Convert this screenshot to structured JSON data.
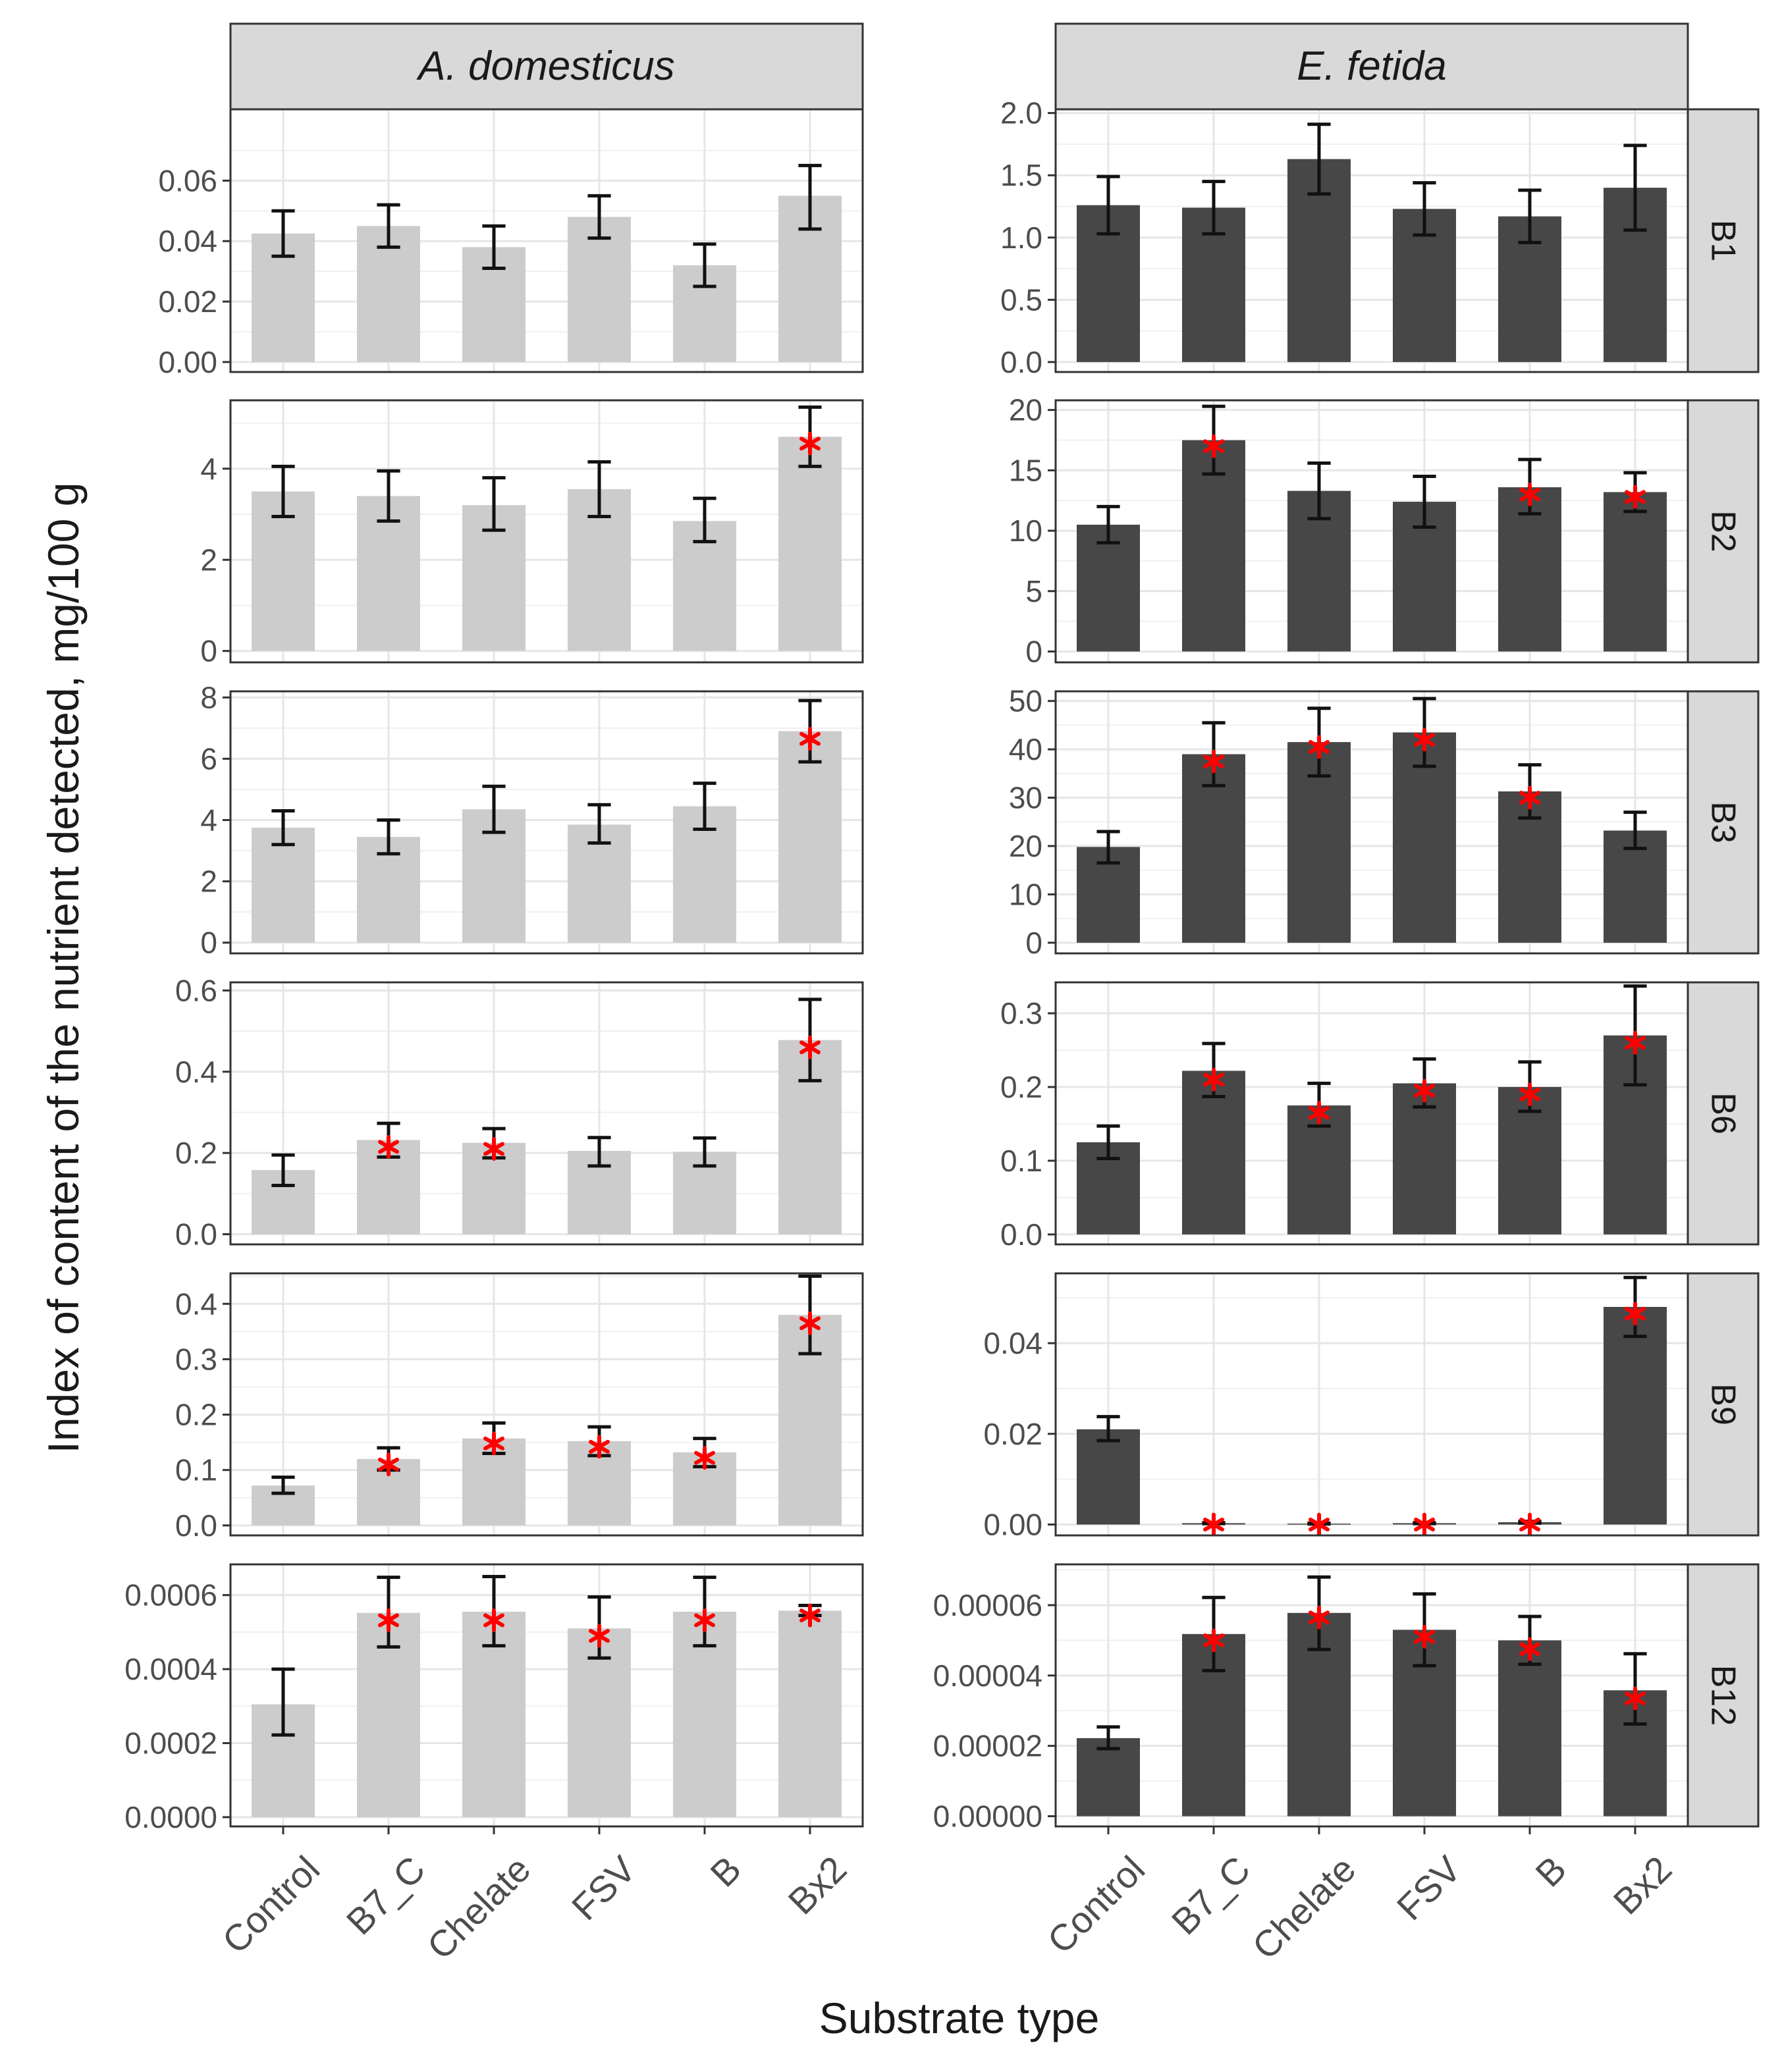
{
  "chart_data": {
    "type": "bar",
    "layout": "facet grid: 6 rows (vitamin) x 2 columns (species), free y scales",
    "xlabel": "Substrate type",
    "ylabel": "Index of content of the nutrient detected, mg/100 g",
    "categories": [
      "Control",
      "B7_C",
      "Chelate",
      "FSV",
      "B",
      "Bx2"
    ],
    "columns": [
      {
        "name": "A. domesticus",
        "bar_color": "#cccccc"
      },
      {
        "name": "E. fetida",
        "bar_color": "#474747"
      }
    ],
    "rows": [
      "B1",
      "B2",
      "B3",
      "B6",
      "B9",
      "B12"
    ],
    "marker_color": "#ff0000",
    "grid": true,
    "panels": [
      {
        "row": "B1",
        "column": "A. domesticus",
        "ylim": [
          -0.0033,
          0.0836
        ],
        "ticks": [
          0.0,
          0.02,
          0.04,
          0.06
        ],
        "tick_labels": [
          "0.00",
          "0.02",
          "0.04",
          "0.06"
        ],
        "values": [
          0.0425,
          0.045,
          0.038,
          0.048,
          0.032,
          0.055
        ],
        "err_low": [
          0.035,
          0.038,
          0.031,
          0.041,
          0.025,
          0.044
        ],
        "err_high": [
          0.05,
          0.052,
          0.045,
          0.055,
          0.039,
          0.065
        ],
        "significant": [
          false,
          false,
          false,
          false,
          false,
          false
        ]
      },
      {
        "row": "B1",
        "column": "E. fetida",
        "ylim": [
          -0.08,
          2.03
        ],
        "ticks": [
          0.0,
          0.5,
          1.0,
          1.5,
          2.0
        ],
        "tick_labels": [
          "0.0",
          "0.5",
          "1.0",
          "1.5",
          "2.0"
        ],
        "values": [
          1.26,
          1.24,
          1.63,
          1.23,
          1.17,
          1.4
        ],
        "err_low": [
          1.03,
          1.03,
          1.35,
          1.02,
          0.96,
          1.06
        ],
        "err_high": [
          1.49,
          1.45,
          1.91,
          1.44,
          1.38,
          1.74
        ],
        "significant": [
          false,
          false,
          false,
          false,
          false,
          false
        ]
      },
      {
        "row": "B2",
        "column": "A. domesticus",
        "ylim": [
          -0.25,
          5.5
        ],
        "ticks": [
          0,
          2,
          4
        ],
        "tick_labels": [
          "0",
          "2",
          "4"
        ],
        "values": [
          3.5,
          3.4,
          3.2,
          3.55,
          2.85,
          4.7
        ],
        "err_low": [
          2.95,
          2.85,
          2.65,
          2.95,
          2.4,
          4.05
        ],
        "err_high": [
          4.05,
          3.95,
          3.8,
          4.15,
          3.35,
          5.35
        ],
        "significant": [
          false,
          false,
          false,
          false,
          false,
          true
        ],
        "marker_values": [
          null,
          null,
          null,
          null,
          null,
          4.55
        ]
      },
      {
        "row": "B2",
        "column": "E. fetida",
        "ylim": [
          -0.9,
          20.8
        ],
        "ticks": [
          0,
          5,
          10,
          15,
          20
        ],
        "tick_labels": [
          "0",
          "5",
          "10",
          "15",
          "20"
        ],
        "values": [
          10.5,
          17.5,
          13.3,
          12.4,
          13.6,
          13.2
        ],
        "err_low": [
          9.0,
          14.7,
          11.0,
          10.3,
          11.4,
          11.6
        ],
        "err_high": [
          12.0,
          20.3,
          15.6,
          14.5,
          15.9,
          14.8
        ],
        "significant": [
          false,
          true,
          false,
          false,
          true,
          true
        ],
        "marker_values": [
          null,
          17.0,
          null,
          null,
          13.0,
          12.8
        ]
      },
      {
        "row": "B3",
        "column": "A. domesticus",
        "ylim": [
          -0.35,
          8.2
        ],
        "ticks": [
          0,
          2,
          4,
          6,
          8
        ],
        "tick_labels": [
          "0",
          "2",
          "4",
          "6",
          "8"
        ],
        "values": [
          3.75,
          3.45,
          4.35,
          3.85,
          4.45,
          6.9
        ],
        "err_low": [
          3.2,
          2.9,
          3.6,
          3.25,
          3.7,
          5.9
        ],
        "err_high": [
          4.3,
          4.0,
          5.1,
          4.5,
          5.2,
          7.9
        ],
        "significant": [
          false,
          false,
          false,
          false,
          false,
          true
        ],
        "marker_values": [
          null,
          null,
          null,
          null,
          null,
          6.65
        ]
      },
      {
        "row": "B3",
        "column": "E. fetida",
        "ylim": [
          -2.2,
          52.0
        ],
        "ticks": [
          0,
          10,
          20,
          30,
          40,
          50
        ],
        "tick_labels": [
          "0",
          "10",
          "20",
          "30",
          "40",
          "50"
        ],
        "values": [
          19.8,
          39.0,
          41.5,
          43.5,
          31.3,
          23.2
        ],
        "err_low": [
          16.5,
          32.5,
          34.5,
          36.5,
          25.8,
          19.5
        ],
        "err_high": [
          23.0,
          45.5,
          48.5,
          50.5,
          36.8,
          27.0
        ],
        "significant": [
          false,
          true,
          true,
          true,
          true,
          false
        ],
        "marker_values": [
          null,
          37.5,
          40.5,
          42.0,
          30.0,
          null
        ]
      },
      {
        "row": "B6",
        "column": "A. domesticus",
        "ylim": [
          -0.025,
          0.62
        ],
        "ticks": [
          0.0,
          0.2,
          0.4,
          0.6
        ],
        "tick_labels": [
          "0.0",
          "0.2",
          "0.4",
          "0.6"
        ],
        "values": [
          0.158,
          0.232,
          0.225,
          0.205,
          0.203,
          0.478
        ],
        "err_low": [
          0.12,
          0.19,
          0.188,
          0.168,
          0.168,
          0.378
        ],
        "err_high": [
          0.195,
          0.273,
          0.26,
          0.238,
          0.237,
          0.578
        ],
        "significant": [
          false,
          true,
          true,
          false,
          false,
          true
        ],
        "marker_values": [
          null,
          0.215,
          0.21,
          null,
          null,
          0.46
        ]
      },
      {
        "row": "B6",
        "column": "E. fetida",
        "ylim": [
          -0.0135,
          0.342
        ],
        "ticks": [
          0.0,
          0.1,
          0.2,
          0.3
        ],
        "tick_labels": [
          "0.0",
          "0.1",
          "0.2",
          "0.3"
        ],
        "values": [
          0.125,
          0.222,
          0.175,
          0.205,
          0.2,
          0.27
        ],
        "err_low": [
          0.103,
          0.187,
          0.147,
          0.173,
          0.167,
          0.203
        ],
        "err_high": [
          0.147,
          0.259,
          0.205,
          0.238,
          0.234,
          0.337
        ],
        "significant": [
          false,
          true,
          true,
          true,
          true,
          true
        ],
        "marker_values": [
          null,
          0.21,
          0.165,
          0.195,
          0.19,
          0.26
        ]
      },
      {
        "row": "B9",
        "column": "A. domesticus",
        "ylim": [
          -0.018,
          0.455
        ],
        "ticks": [
          0.0,
          0.1,
          0.2,
          0.3,
          0.4
        ],
        "tick_labels": [
          "0.0",
          "0.1",
          "0.2",
          "0.3",
          "0.4"
        ],
        "values": [
          0.072,
          0.12,
          0.157,
          0.152,
          0.132,
          0.38
        ],
        "err_low": [
          0.058,
          0.1,
          0.13,
          0.126,
          0.106,
          0.31
        ],
        "err_high": [
          0.087,
          0.14,
          0.185,
          0.178,
          0.157,
          0.45
        ],
        "significant": [
          false,
          true,
          true,
          true,
          true,
          true
        ],
        "marker_values": [
          null,
          0.11,
          0.148,
          0.142,
          0.122,
          0.365
        ]
      },
      {
        "row": "B9",
        "column": "E. fetida",
        "ylim": [
          -0.0024,
          0.0554
        ],
        "ticks": [
          0.0,
          0.02,
          0.04
        ],
        "tick_labels": [
          "0.00",
          "0.02",
          "0.04"
        ],
        "values": [
          0.021,
          0.0003,
          0.0002,
          0.0003,
          0.0005,
          0.048
        ],
        "err_low": [
          0.0185,
          0.0002,
          0.0001,
          0.0002,
          0.0003,
          0.0415
        ],
        "err_high": [
          0.0238,
          0.0004,
          0.0003,
          0.0004,
          0.0007,
          0.0545
        ],
        "significant": [
          false,
          true,
          true,
          true,
          true,
          true
        ],
        "marker_values": [
          null,
          0.0,
          0.0,
          0.0,
          0.0,
          0.0465
        ]
      },
      {
        "row": "B12",
        "column": "A. domesticus",
        "ylim": [
          -2.5e-05,
          0.000683
        ],
        "ticks": [
          0.0,
          0.0002,
          0.0004,
          0.0006
        ],
        "tick_labels": [
          "0.0000",
          "0.0002",
          "0.0004",
          "0.0006"
        ],
        "values": [
          0.000305,
          0.000552,
          0.000555,
          0.00051,
          0.000555,
          0.000558
        ],
        "err_low": [
          0.000222,
          0.00046,
          0.000463,
          0.00043,
          0.000463,
          0.000545
        ],
        "err_high": [
          0.0004,
          0.000648,
          0.00065,
          0.000595,
          0.000648,
          0.000572
        ],
        "significant": [
          false,
          true,
          true,
          true,
          true,
          true
        ],
        "marker_values": [
          null,
          0.000532,
          0.000532,
          0.00049,
          0.000532,
          0.000545
        ]
      },
      {
        "row": "B12",
        "column": "E. fetida",
        "ylim": [
          -2.9e-06,
          7.16e-05
        ],
        "ticks": [
          0.0,
          2e-05,
          4e-05,
          6e-05
        ],
        "tick_labels": [
          "0.00000",
          "0.00002",
          "0.00004",
          "0.00006"
        ],
        "values": [
          2.22e-05,
          5.18e-05,
          5.78e-05,
          5.3e-05,
          5e-05,
          3.58e-05
        ],
        "err_low": [
          1.92e-05,
          4.14e-05,
          4.74e-05,
          4.28e-05,
          4.32e-05,
          2.62e-05
        ],
        "err_high": [
          2.54e-05,
          6.22e-05,
          6.8e-05,
          6.32e-05,
          5.68e-05,
          4.62e-05
        ],
        "significant": [
          false,
          true,
          true,
          true,
          true,
          true
        ],
        "marker_values": [
          null,
          5e-05,
          5.65e-05,
          5.1e-05,
          4.75e-05,
          3.35e-05
        ]
      }
    ]
  }
}
